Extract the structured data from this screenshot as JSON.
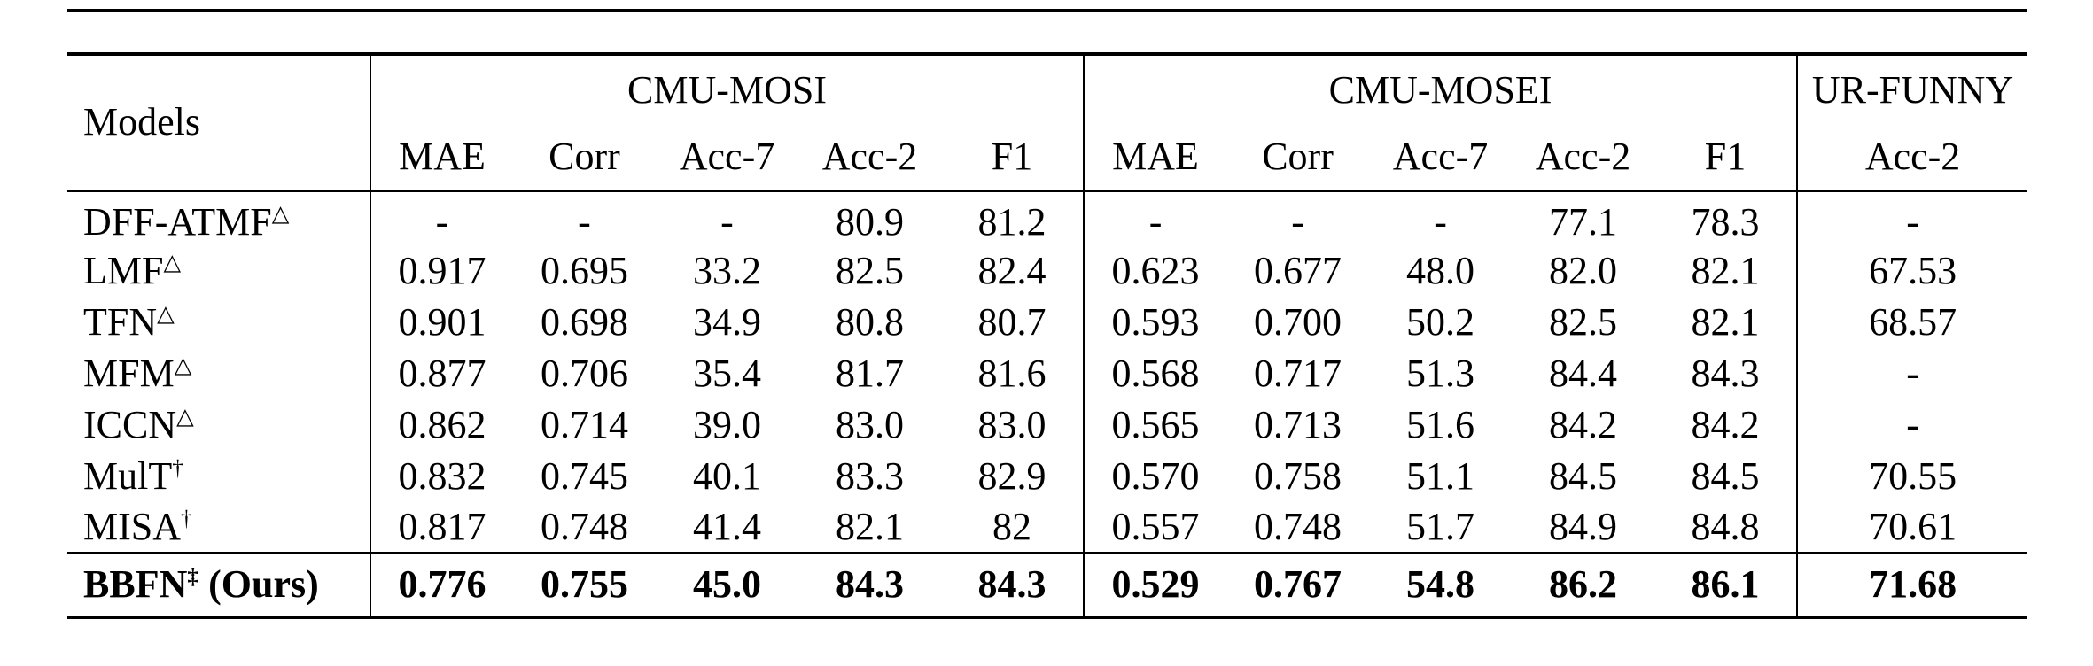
{
  "table": {
    "models_header": "Models",
    "groups": [
      {
        "label": "CMU-MOSI",
        "columns": [
          "MAE",
          "Corr",
          "Acc-7",
          "Acc-2",
          "F1"
        ]
      },
      {
        "label": "CMU-MOSEI",
        "columns": [
          "MAE",
          "Corr",
          "Acc-7",
          "Acc-2",
          "F1"
        ]
      },
      {
        "label": "UR-FUNNY",
        "columns": [
          "Acc-2"
        ]
      }
    ],
    "rows": [
      {
        "model": "DFF-ATMF",
        "superscript": "△",
        "suffix": "",
        "bold": false,
        "values": [
          "-",
          "-",
          "-",
          "80.9",
          "81.2",
          "-",
          "-",
          "-",
          "77.1",
          "78.3",
          "-"
        ]
      },
      {
        "model": "LMF",
        "superscript": "△",
        "suffix": "",
        "bold": false,
        "values": [
          "0.917",
          "0.695",
          "33.2",
          "82.5",
          "82.4",
          "0.623",
          "0.677",
          "48.0",
          "82.0",
          "82.1",
          "67.53"
        ]
      },
      {
        "model": "TFN",
        "superscript": "△",
        "suffix": "",
        "bold": false,
        "values": [
          "0.901",
          "0.698",
          "34.9",
          "80.8",
          "80.7",
          "0.593",
          "0.700",
          "50.2",
          "82.5",
          "82.1",
          "68.57"
        ]
      },
      {
        "model": "MFM",
        "superscript": "△",
        "suffix": "",
        "bold": false,
        "values": [
          "0.877",
          "0.706",
          "35.4",
          "81.7",
          "81.6",
          "0.568",
          "0.717",
          "51.3",
          "84.4",
          "84.3",
          "-"
        ]
      },
      {
        "model": "ICCN",
        "superscript": "△",
        "suffix": "",
        "bold": false,
        "values": [
          "0.862",
          "0.714",
          "39.0",
          "83.0",
          "83.0",
          "0.565",
          "0.713",
          "51.6",
          "84.2",
          "84.2",
          "-"
        ]
      },
      {
        "model": "MulT",
        "superscript": "†",
        "suffix": "",
        "bold": false,
        "values": [
          "0.832",
          "0.745",
          "40.1",
          "83.3",
          "82.9",
          "0.570",
          "0.758",
          "51.1",
          "84.5",
          "84.5",
          "70.55"
        ]
      },
      {
        "model": "MISA",
        "superscript": "†",
        "suffix": "",
        "bold": false,
        "values": [
          "0.817",
          "0.748",
          "41.4",
          "82.1",
          "82",
          "0.557",
          "0.748",
          "51.7",
          "84.9",
          "84.8",
          "70.61"
        ]
      },
      {
        "model": "BBFN",
        "superscript": "‡",
        "suffix": " (Ours)",
        "bold": true,
        "values": [
          "0.776",
          "0.755",
          "45.0",
          "84.3",
          "84.3",
          "0.529",
          "0.767",
          "54.8",
          "86.2",
          "86.1",
          "71.68"
        ]
      }
    ]
  }
}
